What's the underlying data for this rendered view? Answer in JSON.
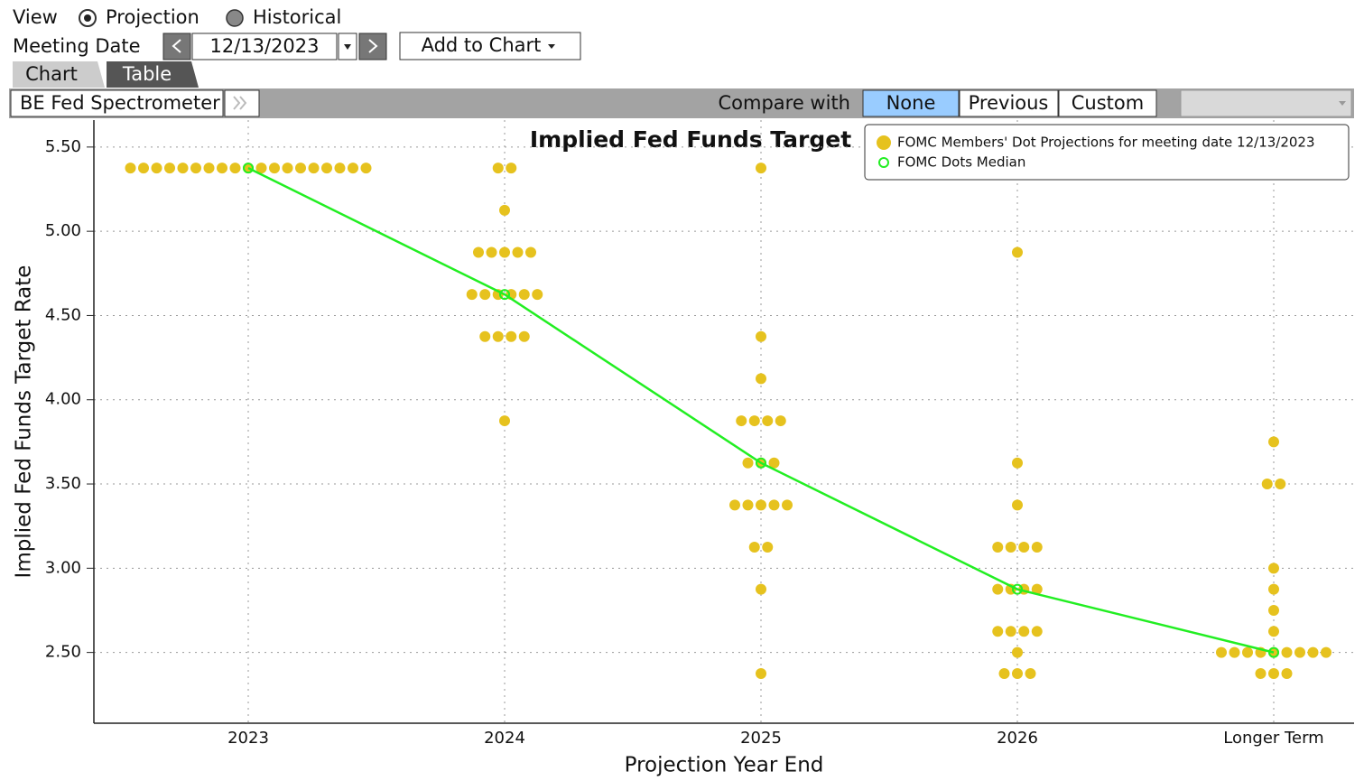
{
  "toolbar": {
    "view_label": "View",
    "view_options": [
      "Projection",
      "Historical"
    ],
    "meeting_date_label": "Meeting Date",
    "meeting_date": "12/13/2023",
    "add_to_chart": "Add to Chart",
    "tabs": [
      "Chart",
      "Table"
    ],
    "function_name": "BE Fed Spectrometer",
    "compare_label": "Compare with",
    "compare_options": [
      "None",
      "Previous",
      "Custom"
    ]
  },
  "chart_data": {
    "type": "dot",
    "title": "Implied Fed Funds Target",
    "x_label": "Projection Year End",
    "y_label": "Implied Fed Funds Target Rate",
    "categories": [
      "2023",
      "2024",
      "2025",
      "2026",
      "Longer Term"
    ],
    "ylim": [
      2.08,
      5.66
    ],
    "yticks": [
      {
        "value": 2.5,
        "label": "2.50"
      },
      {
        "value": 3.0,
        "label": "3.00"
      },
      {
        "value": 3.5,
        "label": "3.50"
      },
      {
        "value": 4.0,
        "label": "4.00"
      },
      {
        "value": 4.5,
        "label": "4.50"
      },
      {
        "value": 5.0,
        "label": "5.00"
      },
      {
        "value": 5.5,
        "label": "5.50"
      }
    ],
    "grid": true,
    "legend": "top-right",
    "series": [
      {
        "name": "FOMC Members' Dot Projections for meeting date 12/13/2023",
        "color": "#e6c21e",
        "values": [
          [
            5.375,
            5.375,
            5.375,
            5.375,
            5.375,
            5.375,
            5.375,
            5.375,
            5.375,
            5.375,
            5.375,
            5.375,
            5.375,
            5.375,
            5.375,
            5.375,
            5.375,
            5.375,
            5.375
          ],
          [
            5.375,
            5.375,
            5.125,
            4.875,
            4.875,
            4.875,
            4.875,
            4.875,
            4.625,
            4.625,
            4.625,
            4.625,
            4.625,
            4.625,
            4.375,
            4.375,
            4.375,
            4.375,
            3.875
          ],
          [
            5.375,
            4.375,
            4.125,
            3.875,
            3.875,
            3.875,
            3.875,
            3.625,
            3.625,
            3.625,
            3.375,
            3.375,
            3.375,
            3.375,
            3.375,
            3.125,
            3.125,
            2.875,
            2.375
          ],
          [
            4.875,
            3.625,
            3.375,
            3.125,
            3.125,
            3.125,
            3.125,
            2.875,
            2.875,
            2.875,
            2.875,
            2.625,
            2.625,
            2.625,
            2.625,
            2.5,
            2.375,
            2.375,
            2.375
          ],
          [
            3.75,
            3.5,
            3.5,
            3.0,
            2.875,
            2.75,
            2.625,
            2.5,
            2.5,
            2.5,
            2.5,
            2.5,
            2.5,
            2.5,
            2.5,
            2.5,
            2.375,
            2.375,
            2.375
          ]
        ]
      },
      {
        "name": "FOMC Dots Median",
        "color": "#22ee22",
        "values": [
          5.375,
          4.625,
          3.625,
          2.875,
          2.5
        ]
      }
    ]
  }
}
